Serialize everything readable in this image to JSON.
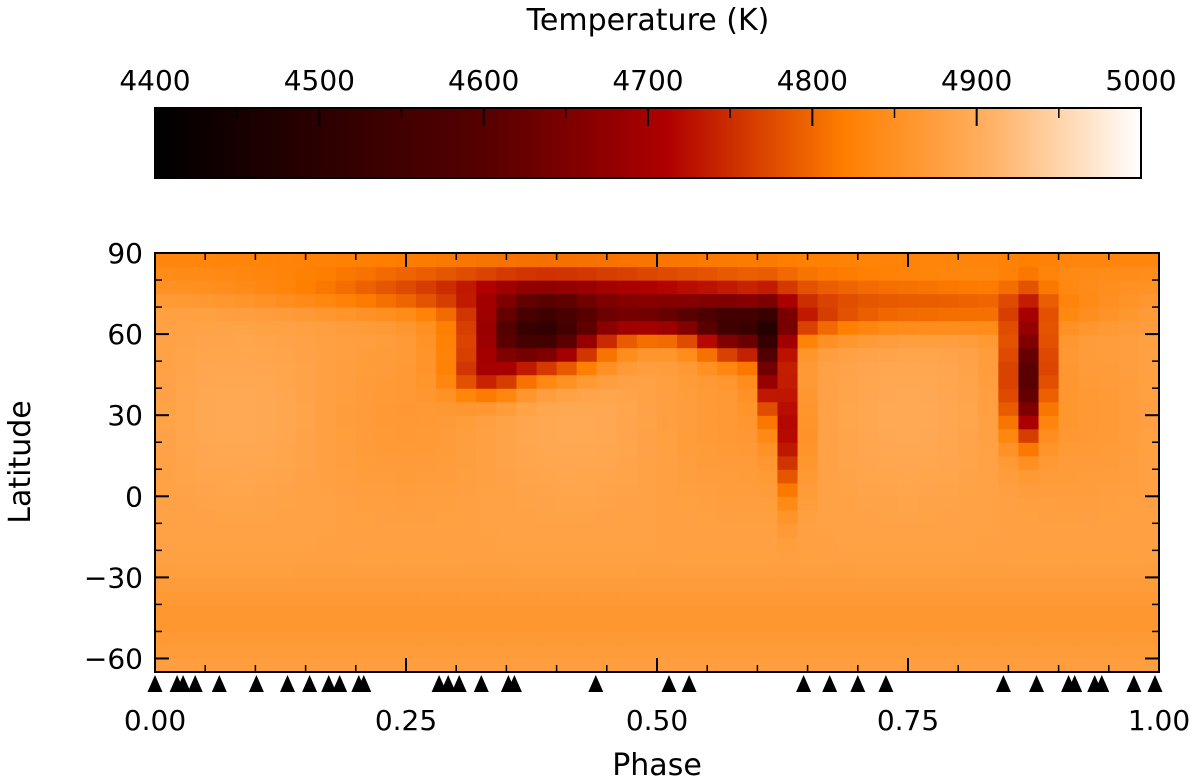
{
  "chart_data": {
    "type": "heatmap",
    "colorbar": {
      "label": "Temperature (K)",
      "range": [
        4400,
        5000
      ],
      "ticks": [
        4400,
        4500,
        4600,
        4700,
        4800,
        4900,
        5000
      ],
      "tick_labels": [
        "4400",
        "4500",
        "4600",
        "4700",
        "4800",
        "4900",
        "5000"
      ],
      "colormap": [
        {
          "t": 0.0,
          "color": "#000000"
        },
        {
          "t": 0.35,
          "color": "#5c0000"
        },
        {
          "t": 0.52,
          "color": "#b00000"
        },
        {
          "t": 0.7,
          "color": "#ff7f00"
        },
        {
          "t": 0.85,
          "color": "#ffb266"
        },
        {
          "t": 1.0,
          "color": "#ffffff"
        }
      ]
    },
    "xlabel": "Phase",
    "ylabel": "Latitude",
    "xlim": [
      0.0,
      1.0
    ],
    "ylim": [
      -65,
      90
    ],
    "xticks": [
      0.0,
      0.25,
      0.5,
      0.75,
      1.0
    ],
    "xtick_labels": [
      "0.00",
      "0.25",
      "0.50",
      "0.75",
      "1.00"
    ],
    "yticks": [
      -60,
      -30,
      0,
      30,
      60,
      90
    ],
    "ytick_labels": [
      "−60",
      "−30",
      "0",
      "30",
      "60",
      "90"
    ],
    "grid": false,
    "map_cells": {
      "phase_step": 0.02,
      "latitude_step": 5
    },
    "background_temperature": 4880,
    "spots": [
      {
        "phase": 0.535,
        "latitude": 66,
        "phase_width": 0.09,
        "latitude_width": 5.5,
        "delta_k": -215
      },
      {
        "phase": 0.38,
        "latitude": 60,
        "phase_width": 0.045,
        "latitude_width": 9,
        "delta_k": -330
      },
      {
        "phase": 0.585,
        "latitude": 60,
        "phase_width": 0.03,
        "latitude_width": 7,
        "delta_k": -190
      },
      {
        "phase": 0.615,
        "latitude": 50,
        "phase_width": 0.011,
        "latitude_width": 13,
        "delta_k": -230
      },
      {
        "phase": 0.632,
        "latitude": 22,
        "phase_width": 0.009,
        "latitude_width": 15,
        "delta_k": -145
      },
      {
        "phase": 0.87,
        "latitude": 50,
        "phase_width": 0.015,
        "latitude_width": 15,
        "delta_k": -240
      },
      {
        "phase": 0.865,
        "latitude": 32,
        "phase_width": 0.01,
        "latitude_width": 10,
        "delta_k": -110
      },
      {
        "phase": 0.42,
        "latitude": 76,
        "phase_width": 0.17,
        "latitude_width": 6,
        "delta_k": -140
      },
      {
        "phase": 0.8,
        "latitude": 70,
        "phase_width": 0.1,
        "latitude_width": 6,
        "delta_k": -75
      },
      {
        "phase": 0.33,
        "latitude": 45,
        "phase_width": 0.025,
        "latitude_width": 6,
        "delta_k": -120
      }
    ],
    "observation_phases": [
      0.0,
      0.022,
      0.028,
      0.04,
      0.064,
      0.101,
      0.132,
      0.154,
      0.173,
      0.184,
      0.203,
      0.208,
      0.283,
      0.292,
      0.303,
      0.325,
      0.352,
      0.358,
      0.439,
      0.512,
      0.532,
      0.646,
      0.672,
      0.7,
      0.728,
      0.845,
      0.878,
      0.91,
      0.916,
      0.936,
      0.943,
      0.975,
      0.996
    ],
    "observation_marker": "filled-triangle",
    "marker_color": "#000000"
  }
}
